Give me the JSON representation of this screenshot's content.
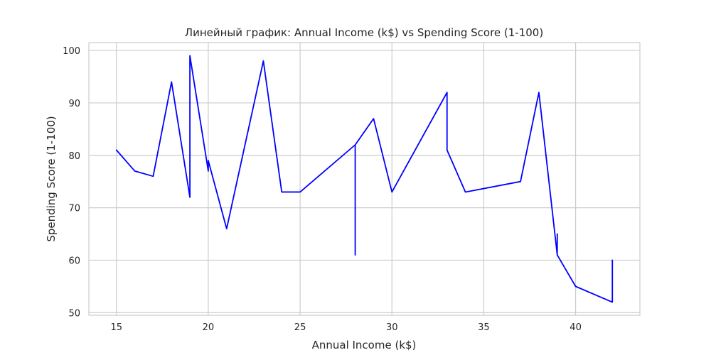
{
  "chart_data": {
    "type": "line",
    "title": "Линейный график: Annual Income (k$) vs Spending Score (1-100)",
    "xlabel": "Annual Income (k$)",
    "ylabel": "Spending Score (1-100)",
    "xlim": [
      13.5,
      43.5
    ],
    "ylim": [
      49.5,
      101.5
    ],
    "xticks": [
      15,
      20,
      25,
      30,
      35,
      40
    ],
    "yticks": [
      50,
      60,
      70,
      80,
      90,
      100
    ],
    "grid": true,
    "series": [
      {
        "color": "#0000ff",
        "points": [
          [
            15,
            81
          ],
          [
            16,
            77
          ],
          [
            17,
            76
          ],
          [
            18,
            94
          ],
          [
            19,
            72
          ],
          [
            19,
            99
          ],
          [
            19,
            72
          ],
          [
            19,
            99
          ],
          [
            20,
            77
          ],
          [
            20,
            79
          ],
          [
            21,
            66
          ],
          [
            23,
            98
          ],
          [
            24,
            73
          ],
          [
            25,
            73
          ],
          [
            28,
            82
          ],
          [
            28,
            61
          ],
          [
            28,
            82
          ],
          [
            29,
            87
          ],
          [
            30,
            73
          ],
          [
            33,
            92
          ],
          [
            33,
            81
          ],
          [
            34,
            73
          ],
          [
            37,
            75
          ],
          [
            38,
            92
          ],
          [
            39,
            61
          ],
          [
            39,
            65
          ],
          [
            39,
            61
          ],
          [
            40,
            55
          ],
          [
            42,
            52
          ],
          [
            42,
            60
          ],
          [
            42,
            52
          ]
        ]
      }
    ]
  }
}
